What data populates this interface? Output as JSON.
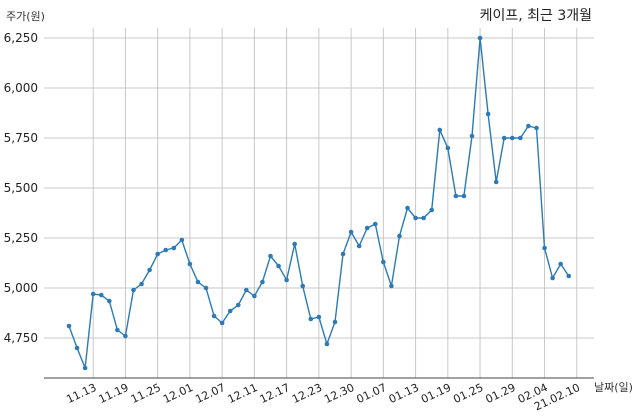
{
  "chart_data": {
    "type": "line",
    "title": "케이프, 최근 3개월",
    "ylabel": "주가(원)",
    "xlabel": "날짜(일)",
    "ylim": [
      4550,
      6300
    ],
    "yticks": [
      4750,
      5000,
      5250,
      5500,
      5750,
      6000,
      6250
    ],
    "ytick_labels": [
      "4,750",
      "5,000",
      "5,250",
      "5,500",
      "5,750",
      "6,000",
      "6,250"
    ],
    "grid": true,
    "xtick_labels": [
      "11.13",
      "11.19",
      "11.25",
      "12.01",
      "12.07",
      "12.11",
      "12.17",
      "12.23",
      "12.30",
      "01.07",
      "01.13",
      "01.19",
      "01.25",
      "01.29",
      "02.04",
      "21.02.10"
    ],
    "xtick_positions": [
      3,
      7,
      11,
      15,
      19,
      23,
      27,
      31,
      35,
      39,
      43,
      47,
      51,
      55,
      59,
      63
    ],
    "series": [
      {
        "color": "#2c7bb6",
        "values": [
          4810,
          4700,
          4600,
          4970,
          4965,
          4935,
          4790,
          4760,
          4990,
          5020,
          5090,
          5170,
          5190,
          5200,
          5240,
          5120,
          5030,
          5000,
          4860,
          4825,
          4885,
          4915,
          4990,
          4960,
          5030,
          5160,
          5110,
          5040,
          5220,
          5010,
          4845,
          4855,
          4720,
          4830,
          5170,
          5280,
          5210,
          5300,
          5320,
          5130,
          5010,
          5260,
          5400,
          5350,
          5350,
          5390,
          5790,
          5700,
          5460,
          5460,
          5760,
          6250,
          5870,
          5530,
          5750,
          5750,
          5750,
          5810,
          5800,
          5200,
          5050,
          5120,
          5060
        ]
      }
    ]
  }
}
